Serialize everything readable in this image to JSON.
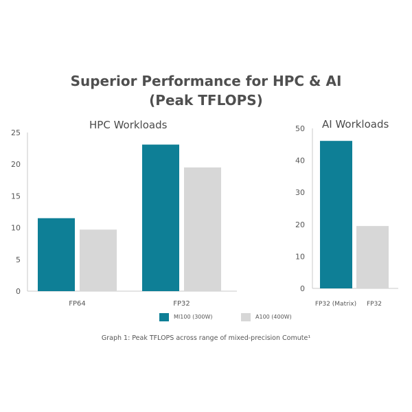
{
  "title_line1": "Superior Performance for HPC & AI",
  "title_line2": "(Peak TFLOPS)",
  "caption": "Graph 1: Peak TFLOPS across range of mixed-precision Comute¹",
  "colors": {
    "mi100": "#0e7f96",
    "a100": "#d7d7d7",
    "axis": "#c9c9c9"
  },
  "legend": [
    {
      "label": "MI100 (300W)",
      "color": "#0e7f96"
    },
    {
      "label": "A100 (400W)",
      "color": "#d7d7d7"
    }
  ],
  "chart_data": [
    {
      "type": "bar",
      "title": "HPC Workloads",
      "categories": [
        "FP64",
        "FP32"
      ],
      "series": [
        {
          "name": "MI100 (300W)",
          "values": [
            11.5,
            23.1
          ]
        },
        {
          "name": "A100 (400W)",
          "values": [
            9.7,
            19.5
          ]
        }
      ],
      "ylim": [
        0,
        25
      ],
      "yticks": [
        0,
        5,
        10,
        15,
        20,
        25
      ]
    },
    {
      "type": "bar",
      "title": "AI Workloads",
      "categories": [
        "FP32 (Matrix)",
        "FP32"
      ],
      "values": [
        46.1,
        19.5
      ],
      "bar_series": [
        "MI100 (300W)",
        "A100 (400W)"
      ],
      "ylim": [
        0,
        50
      ],
      "yticks": [
        0,
        10,
        20,
        30,
        40,
        50
      ]
    }
  ]
}
